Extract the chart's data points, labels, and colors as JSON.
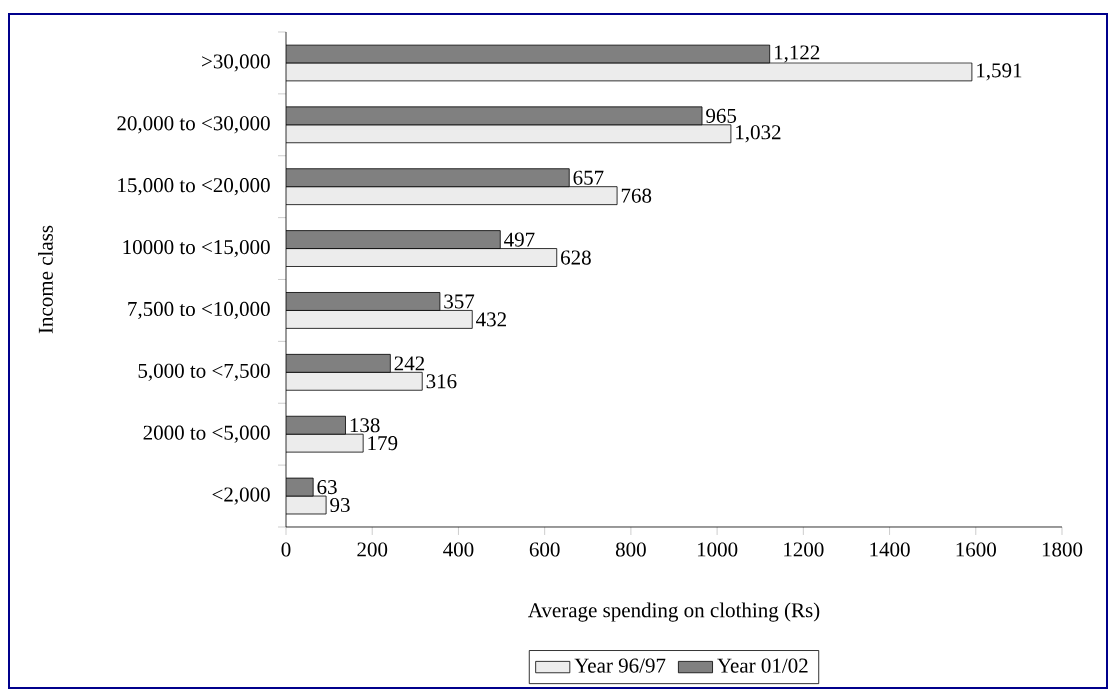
{
  "chart_data": {
    "type": "bar",
    "orientation": "horizontal",
    "xlabel": "Average spending on clothing (Rs)",
    "ylabel": "Income class",
    "categories": [
      ">30,000",
      "20,000 to <30,000",
      "15,000 to <20,000",
      "10000 to <15,000",
      "7,500  to <10,000",
      "5,000 to <7,500",
      "2000 to <5,000",
      "<2,000"
    ],
    "series": [
      {
        "name": "Year 96/97",
        "color": "#ececec",
        "values": [
          1591,
          1032,
          768,
          628,
          432,
          316,
          179,
          93
        ],
        "value_labels": [
          "1,591",
          "1,032",
          "768",
          "628",
          "432",
          "316",
          "179",
          "93"
        ]
      },
      {
        "name": "Year 01/02",
        "color": "#808080",
        "values": [
          1122,
          965,
          657,
          497,
          357,
          242,
          138,
          63
        ],
        "value_labels": [
          "1,122",
          "965",
          "657",
          "497",
          "357",
          "242",
          "138",
          "63"
        ]
      }
    ],
    "xlim": [
      0,
      1800
    ],
    "xticks": [
      0,
      200,
      400,
      600,
      800,
      1000,
      1200,
      1400,
      1600,
      1800
    ],
    "grid": false,
    "legend": "bottom"
  }
}
